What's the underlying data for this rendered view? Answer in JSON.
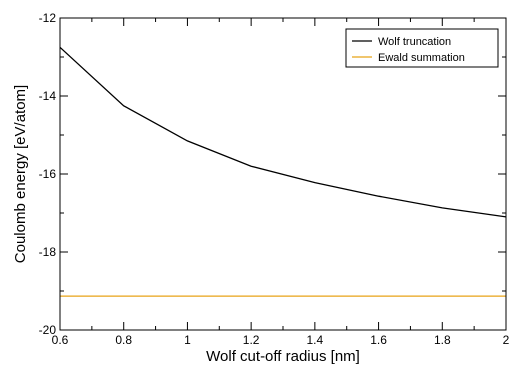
{
  "chart_data": {
    "type": "line",
    "xlabel": "Wolf cut-off radius [nm]",
    "ylabel": "Coulomb energy [eV/atom]",
    "xlim": [
      0.6,
      2.0
    ],
    "ylim": [
      -20,
      -12
    ],
    "x_ticks": [
      0.6,
      0.8,
      1.0,
      1.2,
      1.4,
      1.6,
      1.8,
      2.0
    ],
    "x_tick_labels": [
      "0.6",
      "0.8",
      "1",
      "1.2",
      "1.4",
      "1.6",
      "1.8",
      "2"
    ],
    "y_ticks": [
      -20,
      -18,
      -16,
      -14,
      -12
    ],
    "y_tick_labels": [
      "-20",
      "-18",
      "-16",
      "-14",
      "-12"
    ],
    "grid": false,
    "legend_position": "top-right",
    "series": [
      {
        "name": "Wolf truncation",
        "color": "#000000",
        "x": [
          0.6,
          0.8,
          1.0,
          1.2,
          1.4,
          1.6,
          1.8,
          2.0
        ],
        "y": [
          -12.75,
          -14.25,
          -15.15,
          -15.8,
          -16.22,
          -16.57,
          -16.87,
          -17.1
        ]
      },
      {
        "name": "Ewald summation",
        "color": "#e8a317",
        "x": [
          0.6,
          2.0
        ],
        "y": [
          -19.13,
          -19.13
        ]
      }
    ]
  }
}
